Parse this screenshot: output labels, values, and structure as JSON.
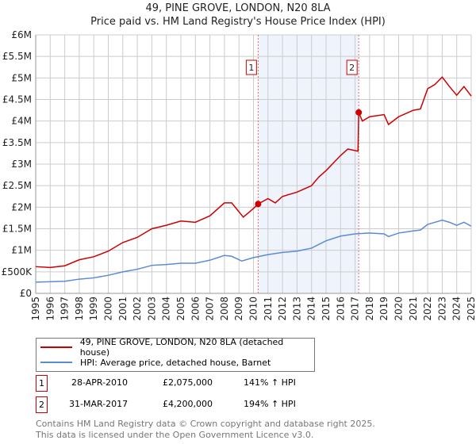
{
  "chart_data": {
    "type": "line",
    "title": "49, PINE GROVE, LONDON, N20 8LA",
    "subtitle": "Price paid vs. HM Land Registry's House Price Index (HPI)",
    "xlim": [
      1995,
      2025
    ],
    "ylim": [
      0,
      6000000
    ],
    "y_ticks": [
      {
        "v": 0,
        "l": "£0"
      },
      {
        "v": 500000,
        "l": "£500K"
      },
      {
        "v": 1000000,
        "l": "£1M"
      },
      {
        "v": 1500000,
        "l": "£1.5M"
      },
      {
        "v": 2000000,
        "l": "£2M"
      },
      {
        "v": 2500000,
        "l": "£2.5M"
      },
      {
        "v": 3000000,
        "l": "£3M"
      },
      {
        "v": 3500000,
        "l": "£3.5M"
      },
      {
        "v": 4000000,
        "l": "£4M"
      },
      {
        "v": 4500000,
        "l": "£4.5M"
      },
      {
        "v": 5000000,
        "l": "£5M"
      },
      {
        "v": 5500000,
        "l": "£5.5M"
      },
      {
        "v": 6000000,
        "l": "£6M"
      }
    ],
    "x_ticks": [
      "1995",
      "1996",
      "1997",
      "1998",
      "1999",
      "2000",
      "2001",
      "2002",
      "2003",
      "2004",
      "2005",
      "2006",
      "2007",
      "2008",
      "2009",
      "2010",
      "2011",
      "2012",
      "2013",
      "2014",
      "2015",
      "2016",
      "2017",
      "2018",
      "2019",
      "2020",
      "2021",
      "2022",
      "2023",
      "2024",
      "2025"
    ],
    "grid": true,
    "series": [
      {
        "name": "49, PINE GROVE, LONDON, N20 8LA (detached house)",
        "color": "#cc0000",
        "x": [
          1995,
          1996,
          1997,
          1998,
          1999,
          2000,
          2001,
          2002,
          2003,
          2004,
          2005,
          2006,
          2007,
          2008,
          2008.5,
          2009.3,
          2010,
          2010.32,
          2011,
          2011.5,
          2012,
          2013,
          2014,
          2014.5,
          2015,
          2016,
          2016.5,
          2017.2,
          2017.25,
          2017.5,
          2018,
          2019,
          2019.3,
          2020,
          2021,
          2021.5,
          2022,
          2022.5,
          2023,
          2023.5,
          2024,
          2024.5,
          2025
        ],
        "y": [
          620000,
          600000,
          640000,
          780000,
          850000,
          980000,
          1180000,
          1300000,
          1500000,
          1580000,
          1680000,
          1650000,
          1800000,
          2100000,
          2100000,
          1770000,
          1970000,
          2075000,
          2200000,
          2100000,
          2250000,
          2350000,
          2500000,
          2700000,
          2850000,
          3200000,
          3350000,
          3300000,
          4200000,
          4000000,
          4100000,
          4150000,
          3920000,
          4100000,
          4250000,
          4280000,
          4750000,
          4850000,
          5020000,
          4800000,
          4600000,
          4800000,
          4580000
        ]
      },
      {
        "name": "HPI: Average price, detached house, Barnet",
        "color": "#5b8bd0",
        "x": [
          1995,
          1997,
          1998,
          1999,
          2000,
          2001,
          2002,
          2003,
          2004,
          2005,
          2006,
          2007,
          2008,
          2008.5,
          2009.2,
          2010,
          2011,
          2012,
          2013,
          2014,
          2015,
          2016,
          2017,
          2018,
          2019,
          2019.3,
          2020,
          2021,
          2021.5,
          2022,
          2023,
          2023.5,
          2024,
          2024.5,
          2025
        ],
        "y": [
          260000,
          280000,
          330000,
          360000,
          420000,
          500000,
          560000,
          650000,
          670000,
          700000,
          700000,
          770000,
          880000,
          860000,
          750000,
          830000,
          900000,
          950000,
          980000,
          1050000,
          1220000,
          1330000,
          1380000,
          1400000,
          1380000,
          1320000,
          1400000,
          1450000,
          1470000,
          1600000,
          1700000,
          1650000,
          1580000,
          1650000,
          1560000
        ]
      }
    ],
    "sales": [
      {
        "n": "1",
        "x": 2010.32,
        "y": 2075000,
        "date": "28-APR-2010",
        "price": "£2,075,000",
        "hpi": "141% ↑ HPI"
      },
      {
        "n": "2",
        "x": 2017.25,
        "y": 4200000,
        "date": "31-MAR-2017",
        "price": "£4,200,000",
        "hpi": "194% ↑ HPI"
      }
    ],
    "legend": "bottom"
  },
  "footer": [
    "Contains HM Land Registry data © Crown copyright and database right 2025.",
    "This data is licensed under the Open Government Licence v3.0."
  ]
}
